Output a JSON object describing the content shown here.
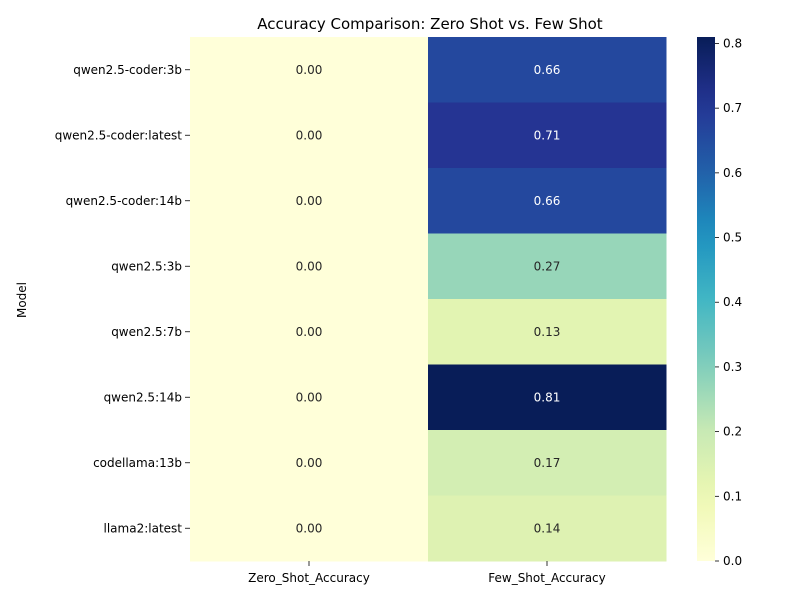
{
  "chart_data": {
    "type": "heatmap",
    "title": "Accuracy Comparison: Zero Shot vs. Few Shot",
    "xlabel": "",
    "ylabel": "Model",
    "columns": [
      "Zero_Shot_Accuracy",
      "Few_Shot_Accuracy"
    ],
    "rows": [
      "qwen2.5-coder:3b",
      "qwen2.5-coder:latest",
      "qwen2.5-coder:14b",
      "qwen2.5:3b",
      "qwen2.5:7b",
      "qwen2.5:14b",
      "codellama:13b",
      "llama2:latest"
    ],
    "values": [
      [
        0.0,
        0.66
      ],
      [
        0.0,
        0.71
      ],
      [
        0.0,
        0.66
      ],
      [
        0.0,
        0.27
      ],
      [
        0.0,
        0.13
      ],
      [
        0.0,
        0.81
      ],
      [
        0.0,
        0.17
      ],
      [
        0.0,
        0.14
      ]
    ],
    "annotations": [
      [
        "0.00",
        "0.66"
      ],
      [
        "0.00",
        "0.71"
      ],
      [
        "0.00",
        "0.66"
      ],
      [
        "0.00",
        "0.27"
      ],
      [
        "0.00",
        "0.13"
      ],
      [
        "0.00",
        "0.81"
      ],
      [
        "0.00",
        "0.17"
      ],
      [
        "0.00",
        "0.14"
      ]
    ],
    "colormap": "YlGnBu",
    "vmin": 0.0,
    "vmax": 0.81,
    "colorbar_ticks": [
      "0.0",
      "0.1",
      "0.2",
      "0.3",
      "0.4",
      "0.5",
      "0.6",
      "0.7",
      "0.8"
    ]
  }
}
